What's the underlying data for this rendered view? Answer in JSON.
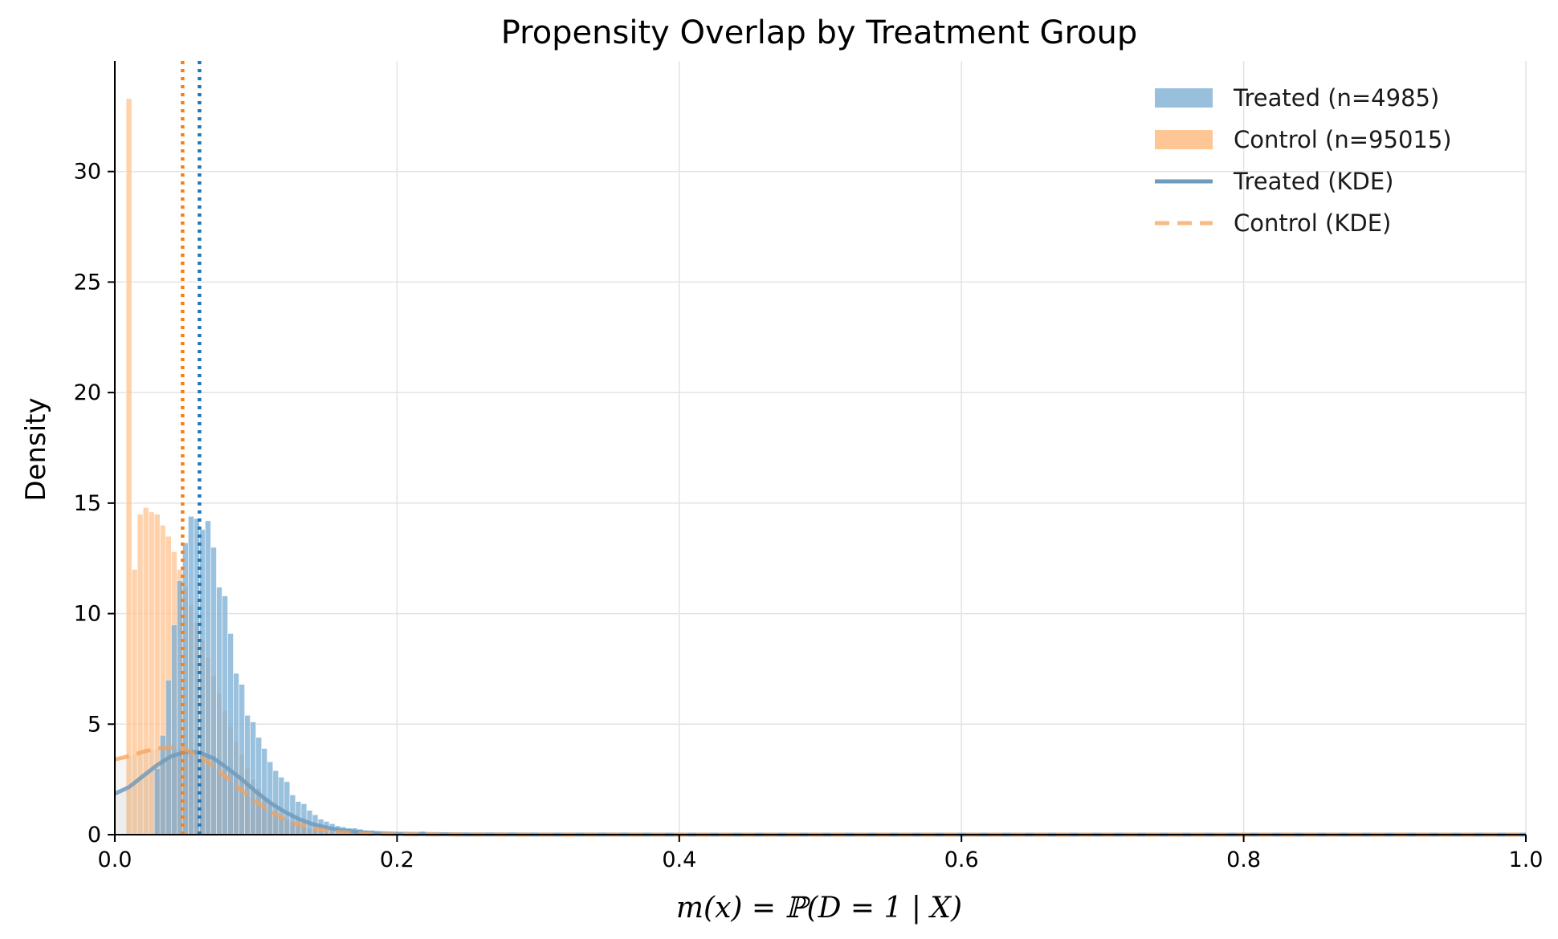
{
  "chart_data": {
    "type": "bar",
    "title": "Propensity Overlap by Treatment Group",
    "xlabel": "m(x) = ℙ(D = 1 | X)",
    "ylabel": "Density",
    "xlim": [
      0.0,
      1.0
    ],
    "ylim": [
      0,
      35
    ],
    "x_ticks": [
      "0.0",
      "0.2",
      "0.4",
      "0.6",
      "0.8",
      "1.0"
    ],
    "y_ticks": [
      "0",
      "5",
      "10",
      "15",
      "20",
      "25",
      "30"
    ],
    "grid": true,
    "legend_position": "top-right",
    "bin_width": 0.004,
    "series": [
      {
        "name": "Treated (n=4985)",
        "kind": "histogram",
        "color": "#7eb0d5",
        "bins": [
          [
            0.028,
            3.0
          ],
          [
            0.032,
            4.5
          ],
          [
            0.036,
            7.0
          ],
          [
            0.04,
            9.5
          ],
          [
            0.044,
            11.5
          ],
          [
            0.048,
            13.2
          ],
          [
            0.052,
            14.4
          ],
          [
            0.056,
            14.3
          ],
          [
            0.06,
            13.8
          ],
          [
            0.064,
            14.2
          ],
          [
            0.068,
            13.0
          ],
          [
            0.072,
            11.2
          ],
          [
            0.076,
            10.8
          ],
          [
            0.08,
            9.1
          ],
          [
            0.084,
            7.3
          ],
          [
            0.088,
            6.8
          ],
          [
            0.092,
            5.4
          ],
          [
            0.096,
            5.1
          ],
          [
            0.1,
            4.4
          ],
          [
            0.104,
            3.9
          ],
          [
            0.108,
            3.3
          ],
          [
            0.112,
            2.9
          ],
          [
            0.116,
            2.6
          ],
          [
            0.12,
            2.4
          ],
          [
            0.124,
            1.8
          ],
          [
            0.128,
            1.5
          ],
          [
            0.132,
            1.4
          ],
          [
            0.136,
            1.1
          ],
          [
            0.14,
            0.9
          ],
          [
            0.144,
            0.7
          ],
          [
            0.148,
            0.6
          ],
          [
            0.152,
            0.5
          ],
          [
            0.156,
            0.4
          ],
          [
            0.16,
            0.35
          ],
          [
            0.164,
            0.3
          ],
          [
            0.168,
            0.3
          ],
          [
            0.172,
            0.25
          ],
          [
            0.176,
            0.2
          ],
          [
            0.18,
            0.2
          ],
          [
            0.184,
            0.15
          ],
          [
            0.188,
            0.12
          ],
          [
            0.192,
            0.1
          ],
          [
            0.196,
            0.1
          ],
          [
            0.2,
            0.1
          ],
          [
            0.208,
            0.08
          ],
          [
            0.216,
            0.15
          ],
          [
            0.224,
            0.05
          ],
          [
            0.24,
            0.05
          ],
          [
            0.26,
            0.03
          ],
          [
            0.3,
            0.02
          ]
        ]
      },
      {
        "name": "Control (n=95015)",
        "kind": "histogram",
        "color": "#ffc08a",
        "bins": [
          [
            0.008,
            33.3
          ],
          [
            0.012,
            12.0
          ],
          [
            0.016,
            14.5
          ],
          [
            0.02,
            14.8
          ],
          [
            0.024,
            14.6
          ],
          [
            0.028,
            14.5
          ],
          [
            0.032,
            14.0
          ],
          [
            0.036,
            13.5
          ],
          [
            0.04,
            12.8
          ],
          [
            0.044,
            12.0
          ],
          [
            0.048,
            11.2
          ],
          [
            0.052,
            10.4
          ],
          [
            0.056,
            9.6
          ],
          [
            0.06,
            8.8
          ],
          [
            0.064,
            8.0
          ],
          [
            0.068,
            7.2
          ],
          [
            0.072,
            6.4
          ],
          [
            0.076,
            5.6
          ],
          [
            0.08,
            4.9
          ],
          [
            0.084,
            4.2
          ],
          [
            0.088,
            3.6
          ],
          [
            0.092,
            3.0
          ],
          [
            0.096,
            2.5
          ],
          [
            0.1,
            2.1
          ],
          [
            0.104,
            1.7
          ],
          [
            0.108,
            1.4
          ],
          [
            0.112,
            1.1
          ],
          [
            0.116,
            0.9
          ],
          [
            0.12,
            0.7
          ],
          [
            0.124,
            0.55
          ],
          [
            0.128,
            0.45
          ],
          [
            0.132,
            0.35
          ],
          [
            0.136,
            0.28
          ],
          [
            0.14,
            0.22
          ],
          [
            0.144,
            0.17
          ],
          [
            0.148,
            0.13
          ],
          [
            0.152,
            0.1
          ],
          [
            0.156,
            0.08
          ],
          [
            0.16,
            0.06
          ],
          [
            0.164,
            0.05
          ],
          [
            0.168,
            0.04
          ],
          [
            0.172,
            0.03
          ],
          [
            0.176,
            0.02
          ],
          [
            0.18,
            0.02
          ]
        ]
      },
      {
        "name": "Treated (KDE)",
        "kind": "kde",
        "color": "#6f9bbd",
        "x": [
          0.0,
          0.01,
          0.02,
          0.03,
          0.04,
          0.05,
          0.06,
          0.07,
          0.08,
          0.09,
          0.1,
          0.11,
          0.12,
          0.13,
          0.14,
          0.15,
          0.16,
          0.18,
          0.2,
          0.25,
          0.3,
          0.4,
          0.6,
          0.8,
          1.0
        ],
        "y": [
          1.85,
          2.15,
          2.65,
          3.15,
          3.55,
          3.75,
          3.72,
          3.45,
          3.0,
          2.5,
          1.95,
          1.45,
          1.05,
          0.72,
          0.48,
          0.32,
          0.2,
          0.08,
          0.04,
          0.01,
          0.005,
          0.0,
          0.0,
          0.0,
          0.0
        ]
      },
      {
        "name": "Control (KDE)",
        "kind": "kde",
        "color": "#f6a25a",
        "x": [
          0.0,
          0.01,
          0.02,
          0.03,
          0.04,
          0.05,
          0.06,
          0.07,
          0.08,
          0.09,
          0.1,
          0.11,
          0.12,
          0.13,
          0.14,
          0.15,
          0.16,
          0.18,
          0.2,
          0.25,
          0.3,
          0.4,
          0.6,
          0.8,
          1.0
        ],
        "y": [
          3.4,
          3.55,
          3.75,
          3.9,
          3.95,
          3.85,
          3.55,
          3.1,
          2.55,
          2.0,
          1.5,
          1.05,
          0.72,
          0.46,
          0.3,
          0.18,
          0.11,
          0.04,
          0.02,
          0.005,
          0.0,
          0.0,
          0.0,
          0.0,
          0.0
        ]
      }
    ],
    "reference_lines": [
      {
        "kind": "vertical",
        "x": 0.048,
        "color": "#ff7f0e",
        "style": "dotted"
      },
      {
        "kind": "vertical",
        "x": 0.06,
        "color": "#1f77b4",
        "style": "dotted"
      }
    ]
  }
}
